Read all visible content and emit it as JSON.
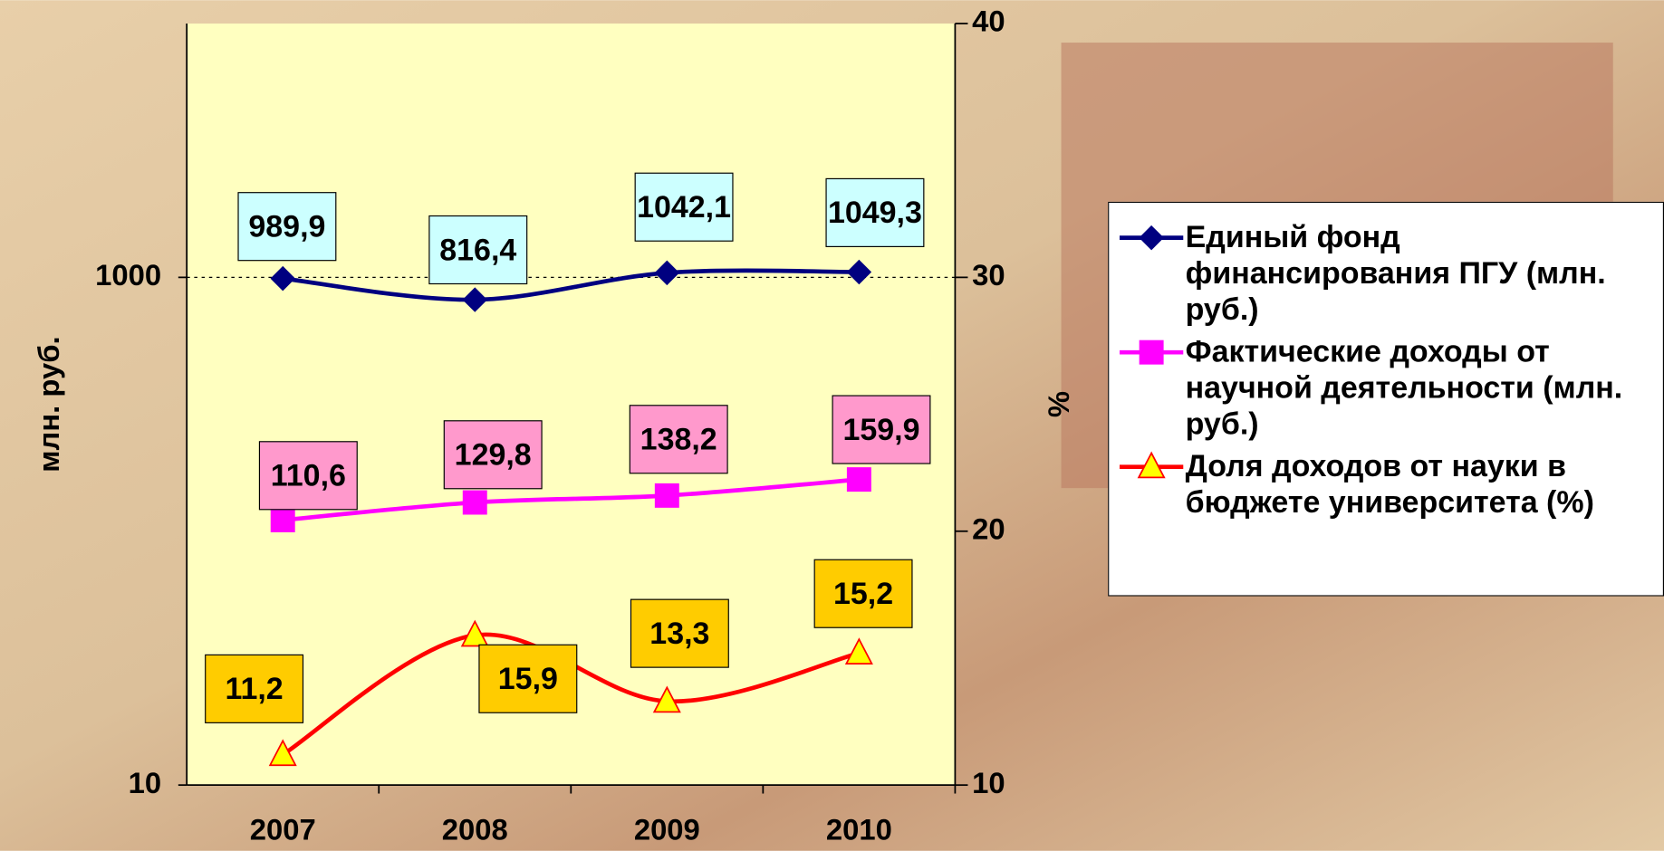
{
  "chart_data": {
    "type": "line",
    "y_label": "млн. руб.",
    "y2_label": "%",
    "categories": [
      "2007",
      "2008",
      "2009",
      "2010"
    ],
    "ylim": [
      10,
      10000
    ],
    "yticks": [
      10,
      1000
    ],
    "log_y": true,
    "y2lim": [
      10,
      40
    ],
    "y2ticks": [
      10,
      20,
      30,
      40
    ],
    "legend": "right",
    "series": [
      {
        "name": "Единый фонд финансирования ПГУ (млн. руб.)",
        "color": "#000080",
        "marker": "diamond",
        "label_fill": "#CCFFFF",
        "values": [
          989.9,
          816.4,
          1042.1,
          1049.3
        ],
        "value_labels": [
          "989,9",
          "816,4",
          "1042,1",
          "1049,3"
        ]
      },
      {
        "name": "Фактические доходы от научной деятельности (млн. руб.)",
        "color": "#FF00FF",
        "marker": "square",
        "label_fill": "#FF99CC",
        "values": [
          110.6,
          129.8,
          138.2,
          159.9
        ],
        "value_labels": [
          "110,6",
          "129,8",
          "138,2",
          "159,9"
        ]
      },
      {
        "name": "Доля доходов от науки в бюджете университета (%)",
        "color": "#FF0000",
        "marker": "triangle",
        "label_fill": "#FFCC00",
        "axis": "y2",
        "values": [
          11.2,
          15.9,
          13.3,
          15.2
        ],
        "value_labels": [
          "11,2",
          "15,9",
          "13,3",
          "15,2"
        ]
      }
    ]
  }
}
